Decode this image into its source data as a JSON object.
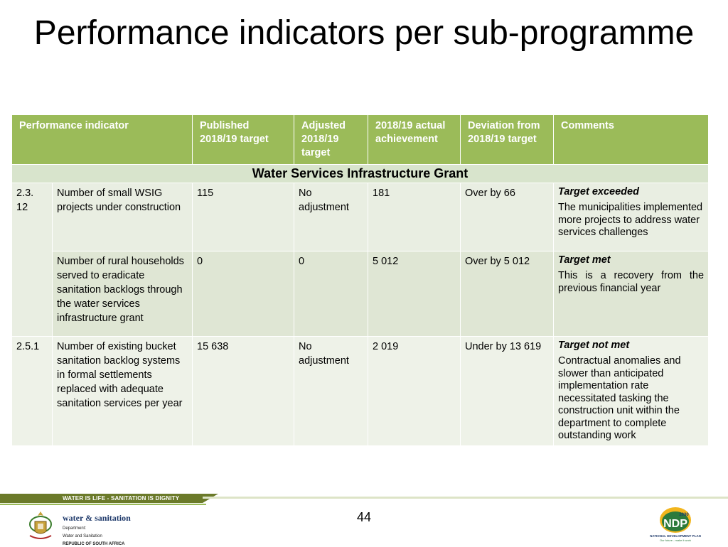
{
  "slide": {
    "title": "Performance indicators per sub-programme",
    "page_number": "44"
  },
  "table": {
    "headers": [
      "Performance indicator",
      "Published 2018/19 target",
      "Adjusted 2018/19 target",
      "2018/19 actual achievement",
      "Deviation from 2018/19 target",
      "Comments"
    ],
    "section_title": "Water Services Infrastructure Grant",
    "rows": [
      {
        "code": "2.3.\n12",
        "indicator": "Number of small WSIG projects under construction",
        "published": "115",
        "adjusted": "No adjustment",
        "actual": "181",
        "deviation": "Over by 66",
        "comment_title": "Target exceeded",
        "comment_text": "The municipalities implemented more projects to address water services challenges"
      },
      {
        "code": "",
        "indicator": "Number of rural households served to eradicate sanitation backlogs through the water services infrastructure grant",
        "published": "0",
        "adjusted": "0",
        "actual": "5 012",
        "deviation": "Over by 5 012",
        "comment_title": "Target met",
        "comment_text": "This is a recovery from the previous financial year"
      },
      {
        "code": "2.5.1",
        "indicator": "Number of existing bucket sanitation backlog systems in formal settlements replaced with adequate sanitation services per year",
        "published": "15 638",
        "adjusted": "No adjustment",
        "actual": "2 019",
        "deviation": "Under by 13 619",
        "comment_title": "Target not met",
        "comment_text": "Contractual anomalies and slower than anticipated implementation rate necessitated tasking the construction unit within the department to complete outstanding work"
      }
    ]
  },
  "footer": {
    "banner": "WATER IS LIFE - SANITATION IS DIGNITY",
    "dept_name": "water & sanitation",
    "dept_sub_1": "Department:",
    "dept_sub_2": "Water and Sanitation",
    "dept_sub_3": "REPUBLIC OF SOUTH AFRICA",
    "ndp_logo": "NDP",
    "ndp_year": "2030",
    "ndp_caption": "NATIONAL DEVELOPMENT PLAN",
    "ndp_tagline": "Our future - make it work"
  },
  "colors": {
    "header_green": "#9bbb59",
    "banner_olive": "#6b7a2a",
    "row_light": "#e9eee2"
  }
}
